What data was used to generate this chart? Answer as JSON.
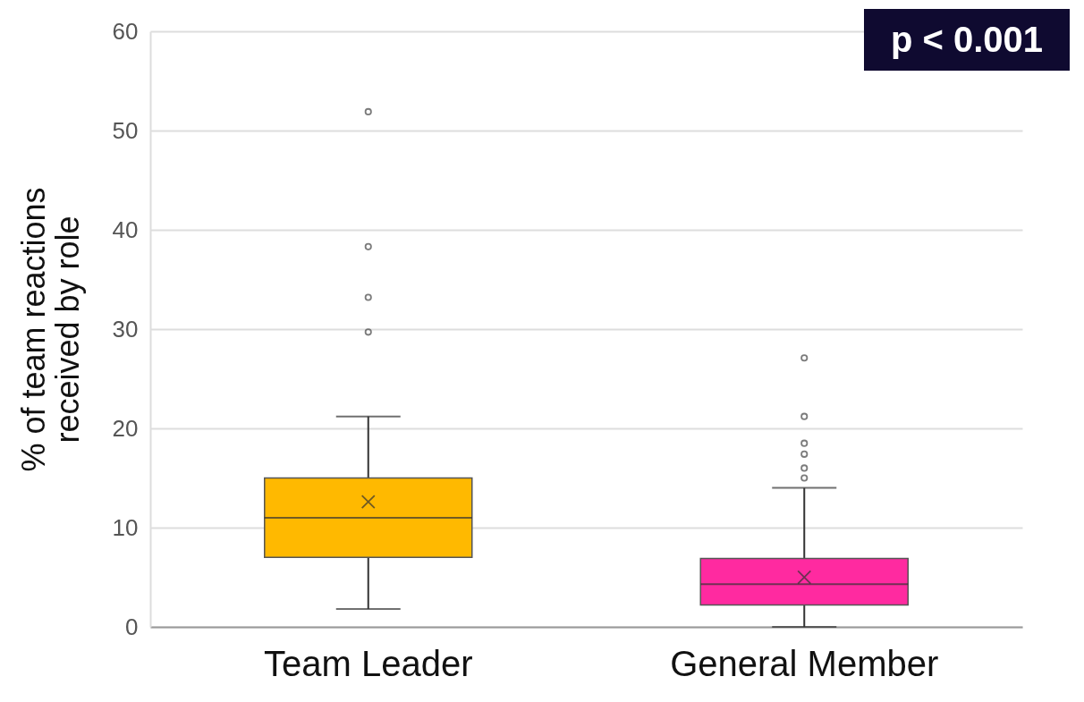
{
  "chart_data": {
    "type": "box",
    "ylabel": "% of team reactions received by role",
    "categories": [
      "Team Leader",
      "General Member"
    ],
    "colors": [
      "#ffb900",
      "#ff2aa0"
    ],
    "boxes": [
      {
        "low": 1.8,
        "q1": 7.0,
        "median": 11.0,
        "q3": 15.0,
        "high": 21.2,
        "mean": 12.6,
        "outliers": [
          29.7,
          33.2,
          38.3,
          51.9
        ]
      },
      {
        "low": 0,
        "q1": 2.2,
        "median": 4.3,
        "q3": 6.9,
        "high": 14.0,
        "mean": 5.0,
        "outliers": [
          15.0,
          16.0,
          17.4,
          18.5,
          21.2,
          27.1
        ]
      }
    ],
    "ylim": [
      0,
      60
    ],
    "yticks": [
      0,
      10,
      20,
      30,
      40,
      50,
      60
    ],
    "grid": "y",
    "annotations": [
      "p < 0.001"
    ]
  }
}
